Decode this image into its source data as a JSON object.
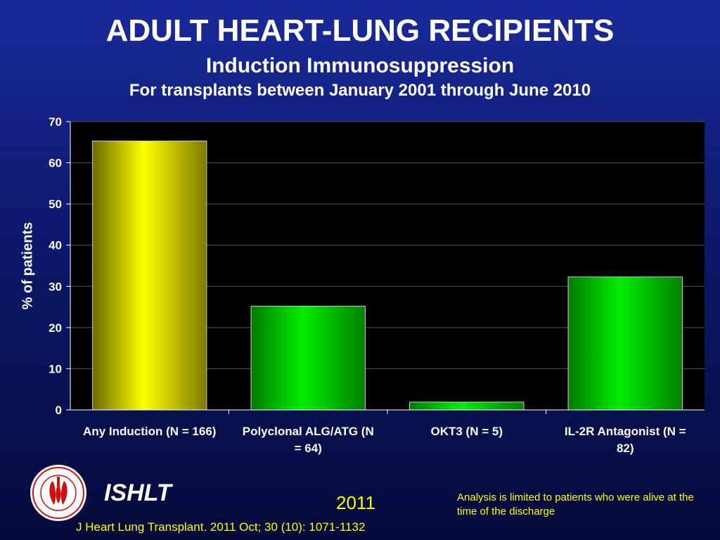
{
  "header": {
    "title": "ADULT HEART-LUNG RECIPIENTS",
    "subtitle": "Induction Immunosuppression",
    "subtitle2": "For transplants between January 2001 through June 2010"
  },
  "chart_data": {
    "type": "bar",
    "categories": [
      "Any Induction (N = 166)",
      "Polyclonal ALG/ATG (N = 64)",
      "OKT3 (N = 5)",
      "IL-2R Antagonist (N = 82)"
    ],
    "values": [
      65.3,
      25.2,
      1.9,
      32.3
    ],
    "ylabel": "% of patients",
    "ylim": [
      0,
      70
    ],
    "yticks": [
      0,
      10,
      20,
      30,
      40,
      50,
      60,
      70
    ],
    "grid": true,
    "bar_colors": [
      "#ffff00",
      "#00dd00",
      "#00dd00",
      "#00dd00"
    ],
    "plot_background": "#000000"
  },
  "footer": {
    "brand": "ISHLT",
    "year": "2011",
    "note": "Analysis is limited to patients who were alive at the time of the discharge",
    "citation": "J Heart Lung Transplant. 2011 Oct; 30 (10): 1071-1132"
  },
  "colors": {
    "accent_text": "#ffff00",
    "logo_red": "#cc1111"
  }
}
